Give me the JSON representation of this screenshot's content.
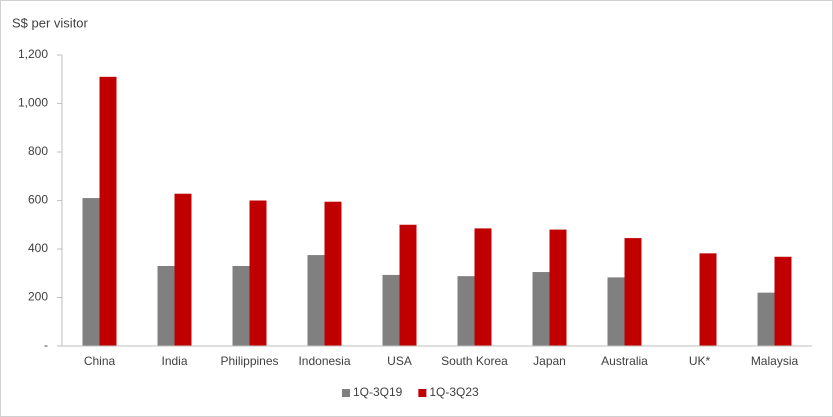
{
  "chart_data": {
    "type": "bar",
    "y_label": "S$ per visitor",
    "categories": [
      "China",
      "India",
      "Philippines",
      "Indonesia",
      "USA",
      "South Korea",
      "Japan",
      "Australia",
      "UK*",
      "Malaysia"
    ],
    "series": [
      {
        "name": "1Q-3Q19",
        "color": "#808080",
        "values": [
          610,
          330,
          330,
          375,
          293,
          288,
          305,
          283,
          null,
          220
        ]
      },
      {
        "name": "1Q-3Q23",
        "color": "#c00000",
        "values": [
          1110,
          628,
          600,
          595,
          500,
          485,
          480,
          445,
          382,
          368
        ]
      }
    ],
    "ylim": [
      0,
      1200
    ],
    "yticks": [
      {
        "value": 0,
        "label": "-"
      },
      200,
      400,
      600,
      800,
      {
        "value": 1000,
        "label": "1,000"
      },
      {
        "value": 1200,
        "label": "1,200"
      }
    ],
    "grid": false,
    "legend": "bottom"
  }
}
